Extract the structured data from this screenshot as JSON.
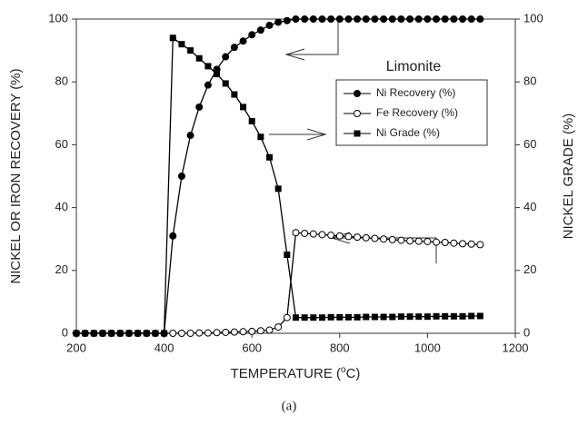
{
  "chart_data": {
    "type": "line",
    "x_label": {
      "text": "TEMPERATURE (",
      "sup": "o",
      "end": "C)"
    },
    "y_label": "NICKEL OR IRON RECOVERY (%)",
    "y2_label": "NICKEL GRADE (%)",
    "caption": "(a)",
    "legend_title": "Limonite",
    "xlim": [
      200,
      1200
    ],
    "xticks": [
      200,
      400,
      600,
      800,
      1000,
      1200
    ],
    "ylim": [
      0,
      100
    ],
    "yticks": [
      0,
      20,
      40,
      60,
      80,
      100
    ],
    "y2lim": [
      0,
      100
    ],
    "y2ticks": [
      0,
      20,
      40,
      60,
      80,
      100
    ],
    "x": [
      200,
      220,
      240,
      260,
      280,
      300,
      320,
      340,
      360,
      380,
      400,
      420,
      440,
      460,
      480,
      500,
      520,
      540,
      560,
      580,
      600,
      620,
      640,
      660,
      680,
      700,
      720,
      740,
      760,
      780,
      800,
      820,
      840,
      860,
      880,
      900,
      920,
      940,
      960,
      980,
      1000,
      1020,
      1040,
      1060,
      1080,
      1100,
      1120
    ],
    "series": [
      {
        "name": "Ni Recovery (%)",
        "color": "#000000",
        "marker": "filled-circle",
        "values": [
          0,
          0,
          0,
          0,
          0,
          0,
          0,
          0,
          0,
          0,
          0,
          31,
          50,
          63,
          72,
          79,
          84,
          88,
          91,
          93,
          95,
          96.5,
          98,
          99,
          99.5,
          100,
          100,
          100,
          100,
          100,
          100,
          100,
          100,
          100,
          100,
          100,
          100,
          100,
          100,
          100,
          100,
          100,
          100,
          100,
          100,
          100,
          100
        ]
      },
      {
        "name": "Fe Recovery (%)",
        "color": "#000000",
        "marker": "open-circle",
        "values": [
          0,
          0,
          0,
          0,
          0,
          0,
          0,
          0,
          0,
          0,
          0,
          0,
          0,
          0,
          0.1,
          0.1,
          0.2,
          0.3,
          0.4,
          0.5,
          0.6,
          0.8,
          1,
          2,
          5,
          32,
          31.8,
          31.6,
          31.4,
          31.2,
          31,
          30.8,
          30.6,
          30.4,
          30.2,
          30,
          29.8,
          29.6,
          29.4,
          29.3,
          29.2,
          29,
          28.9,
          28.7,
          28.5,
          28.4,
          28.2
        ]
      },
      {
        "name": "Ni Grade (%)",
        "color": "#000000",
        "marker": "filled-square",
        "axis": "y2",
        "values": [
          0,
          0,
          0,
          0,
          0,
          0,
          0,
          0,
          0,
          0,
          0,
          94,
          92,
          90,
          87.5,
          85,
          82.5,
          79.5,
          76,
          72,
          67.5,
          62.5,
          56,
          46,
          25,
          5,
          5,
          5,
          5,
          5.1,
          5.1,
          5.1,
          5.1,
          5.2,
          5.2,
          5.2,
          5.2,
          5.3,
          5.3,
          5.3,
          5.3,
          5.4,
          5.4,
          5.4,
          5.4,
          5.5,
          5.5
        ]
      }
    ]
  }
}
